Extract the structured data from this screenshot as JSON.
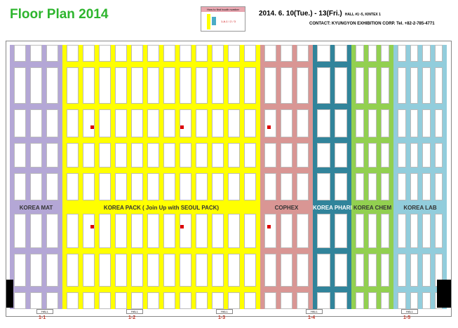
{
  "header": {
    "title": "Floor  Plan 2014",
    "date": "2014. 6. 10(Tue.) - 13(Fri.)",
    "venue": "HALL #1~5,  KINTEX 1",
    "contact": "CONTACT: KYUNGYON EXHIBITION CORP. Tel. +82-2-785-4771",
    "legend_title": "How to find booth number",
    "legend_note": "1-A-1 / 2 / 3"
  },
  "zones": [
    {
      "name": "KOREA MAT",
      "color": "#b4a7d6"
    },
    {
      "name": "KOREA PACK  ( Join Up with SEOUL PACK)",
      "color": "#ffff00"
    },
    {
      "name": "COPHEX",
      "color": "#d99694"
    },
    {
      "name": "KOREA PHARM",
      "color": "#31849b"
    },
    {
      "name": "KOREA CHEM",
      "color": "#92d050"
    },
    {
      "name": "KOREA LAB",
      "color": "#92cddc"
    }
  ],
  "gates": [
    {
      "label": "HALL",
      "num": "1-1"
    },
    {
      "label": "HALL",
      "num": "1-2"
    },
    {
      "label": "HALL",
      "num": "1-3"
    },
    {
      "label": "HALL",
      "num": "1-4"
    },
    {
      "label": "HALL",
      "num": "1-5"
    }
  ]
}
